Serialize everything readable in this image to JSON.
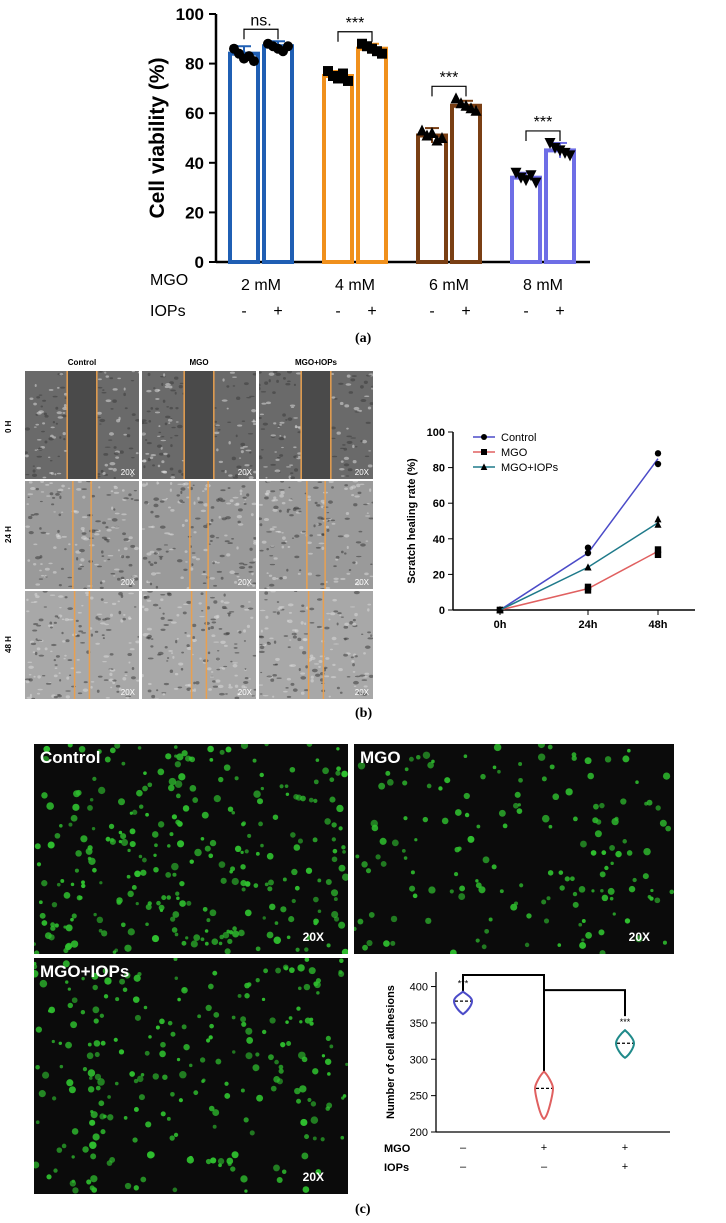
{
  "panel_labels": {
    "a": "(a)",
    "b": "(b)",
    "c": "(c)"
  },
  "chart_data": [
    {
      "type": "bar",
      "ylabel": "Cell viability (%)",
      "ylim": [
        0,
        100
      ],
      "yticks": [
        0,
        20,
        40,
        60,
        80,
        100
      ],
      "row_labels": {
        "mgo": "MGO",
        "iops": "IOPs"
      },
      "groups": [
        {
          "mgo": "2 mM",
          "color": "#1f5fb4",
          "sig": "ns.",
          "bars": [
            {
              "iops": "-",
              "value": 84,
              "err": 3
            },
            {
              "iops": "+",
              "value": 87,
              "err": 2
            }
          ],
          "points": [
            [
              86,
              84,
              82,
              83,
              81
            ],
            [
              88,
              87,
              86,
              85,
              87
            ]
          ]
        },
        {
          "mgo": "4 mM",
          "color": "#f0901c",
          "sig": "***",
          "bars": [
            {
              "iops": "-",
              "value": 75,
              "err": 2
            },
            {
              "iops": "+",
              "value": 86,
              "err": 2
            }
          ],
          "points": [
            [
              77,
              75,
              74,
              76,
              73
            ],
            [
              88,
              87,
              86,
              85,
              84
            ]
          ]
        },
        {
          "mgo": "6 mM",
          "color": "#7a3f14",
          "sig": "***",
          "bars": [
            {
              "iops": "-",
              "value": 51,
              "err": 3
            },
            {
              "iops": "+",
              "value": 63,
              "err": 2
            }
          ],
          "points": [
            [
              53,
              51,
              52,
              49,
              50
            ],
            [
              66,
              64,
              63,
              62,
              61
            ]
          ]
        },
        {
          "mgo": "8 mM",
          "color": "#6e6ee6",
          "sig": "***",
          "bars": [
            {
              "iops": "-",
              "value": 34,
              "err": 2
            },
            {
              "iops": "+",
              "value": 45,
              "err": 3
            }
          ],
          "points": [
            [
              36,
              34,
              33,
              35,
              32
            ],
            [
              48,
              46,
              45,
              44,
              43
            ]
          ]
        }
      ]
    },
    {
      "type": "line",
      "ylabel": "Scratch healing rate  (%)",
      "x": [
        "0h",
        "24h",
        "48h"
      ],
      "ylim": [
        0,
        100
      ],
      "yticks": [
        0,
        20,
        40,
        60,
        80,
        100
      ],
      "legend_position": "top-left",
      "series": [
        {
          "name": "Control",
          "marker": "circle",
          "color": "#4b4bc8",
          "mean": [
            0,
            32,
            85
          ],
          "points": [
            [
              0,
              0
            ],
            [
              32,
              35
            ],
            [
              82,
              88
            ]
          ]
        },
        {
          "name": "MGO",
          "marker": "square",
          "color": "#e06060",
          "mean": [
            0,
            12,
            33
          ],
          "points": [
            [
              0,
              0
            ],
            [
              11,
              13
            ],
            [
              31,
              34
            ]
          ]
        },
        {
          "name": "MGO+IOPs",
          "marker": "triangle",
          "color": "#1f7a8a",
          "mean": [
            0,
            24,
            49
          ],
          "points": [
            [
              0,
              0
            ],
            [
              24,
              24
            ],
            [
              48,
              51
            ]
          ]
        }
      ]
    },
    {
      "type": "violin",
      "ylabel": "Number of cell adhesions",
      "ylim": [
        200,
        420
      ],
      "yticks": [
        200,
        250,
        300,
        350,
        400
      ],
      "row_labels": {
        "mgo": "MGO",
        "iops": "IOPs"
      },
      "groups": [
        {
          "mgo": "–",
          "iops": "–",
          "median": 380,
          "min": 362,
          "max": 393,
          "color": "#4b4bc8",
          "sig": "***"
        },
        {
          "mgo": "+",
          "iops": "–",
          "median": 260,
          "min": 218,
          "max": 283,
          "color": "#e06060",
          "sig": ""
        },
        {
          "mgo": "+",
          "iops": "+",
          "median": 322,
          "min": 302,
          "max": 340,
          "color": "#1f8a8a",
          "sig": "***"
        }
      ]
    }
  ],
  "wound_assay": {
    "columns": [
      "Control",
      "MGO",
      "MGO+IOPs"
    ],
    "rows": [
      "0 H",
      "24 H",
      "48 H"
    ],
    "magnification": "20X",
    "gap_fraction": [
      0.26,
      0.16,
      0.13
    ]
  },
  "adhesion_images": [
    {
      "label": "Control",
      "magnification": "20X",
      "density": 1.0
    },
    {
      "label": "MGO",
      "magnification": "20X",
      "density": 0.55
    },
    {
      "label": "MGO+IOPs",
      "magnification": "20X",
      "density": 0.75
    }
  ],
  "colors": {
    "orange_edge": "#e8a050",
    "cell_green": "#2fbf2f"
  }
}
